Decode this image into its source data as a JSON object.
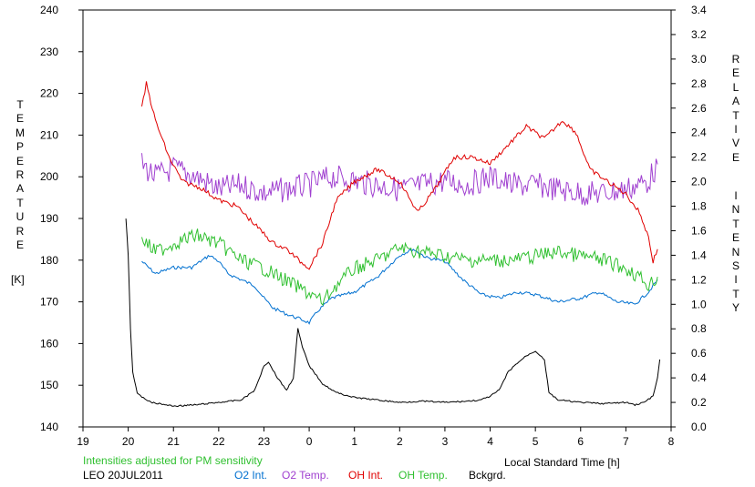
{
  "chart_data": {
    "type": "line",
    "left_axis": {
      "label_letters": [
        "T",
        "E",
        "M",
        "P",
        "E",
        "R",
        "A",
        "T",
        "U",
        "R",
        "E"
      ],
      "unit": "[K]",
      "ylim": [
        140,
        240
      ],
      "ticks": [
        "140",
        "150",
        "160",
        "170",
        "180",
        "190",
        "200",
        "210",
        "220",
        "230",
        "240"
      ]
    },
    "right_axis": {
      "label_words": [
        [
          "R",
          "E",
          "L",
          "A",
          "T",
          "I",
          "V",
          "E"
        ],
        [
          "I",
          "N",
          "T",
          "E",
          "N",
          "S",
          "I",
          "T",
          "Y"
        ]
      ],
      "ylim": [
        0.0,
        3.4
      ],
      "ticks": [
        "0.0",
        "0.2",
        "0.4",
        "0.6",
        "0.8",
        "1.0",
        "1.2",
        "1.4",
        "1.6",
        "1.8",
        "2.0",
        "2.2",
        "2.4",
        "2.6",
        "2.8",
        "3.0",
        "3.2",
        "3.4"
      ]
    },
    "x_axis": {
      "label": "Local Standard Time [h]",
      "ticks": [
        "19",
        "20",
        "21",
        "22",
        "23",
        "0",
        "1",
        "2",
        "3",
        "4",
        "5",
        "6",
        "7",
        "8"
      ],
      "xlim": [
        19,
        32
      ]
    },
    "note": "Intensities adjusted for PM sensitivity",
    "station": "LEO 20JUL2011",
    "series": [
      {
        "name": "O2 Int.",
        "color": "#0070d0",
        "axis": "right",
        "points": [
          [
            20.3,
            1.35
          ],
          [
            20.6,
            1.25
          ],
          [
            21.0,
            1.3
          ],
          [
            21.4,
            1.3
          ],
          [
            21.8,
            1.4
          ],
          [
            22.0,
            1.35
          ],
          [
            22.2,
            1.25
          ],
          [
            22.5,
            1.2
          ],
          [
            22.8,
            1.15
          ],
          [
            23.0,
            1.05
          ],
          [
            23.2,
            0.97
          ],
          [
            23.5,
            0.92
          ],
          [
            23.8,
            0.88
          ],
          [
            24.0,
            0.85
          ],
          [
            24.2,
            0.95
          ],
          [
            24.5,
            1.05
          ],
          [
            25.0,
            1.1
          ],
          [
            25.5,
            1.22
          ],
          [
            26.0,
            1.4
          ],
          [
            26.3,
            1.45
          ],
          [
            26.6,
            1.38
          ],
          [
            27.0,
            1.35
          ],
          [
            27.4,
            1.2
          ],
          [
            27.8,
            1.08
          ],
          [
            28.2,
            1.05
          ],
          [
            28.6,
            1.1
          ],
          [
            29.0,
            1.08
          ],
          [
            29.5,
            1.02
          ],
          [
            30.0,
            1.05
          ],
          [
            30.4,
            1.1
          ],
          [
            30.8,
            1.02
          ],
          [
            31.2,
            1.0
          ],
          [
            31.5,
            1.1
          ],
          [
            31.7,
            1.2
          ]
        ]
      },
      {
        "name": "O2 Temp.",
        "color": "#a040d0",
        "axis": "left",
        "points": [
          [
            20.3,
            203
          ],
          [
            20.6,
            200
          ],
          [
            21.0,
            202
          ],
          [
            21.5,
            200
          ],
          [
            22.0,
            197
          ],
          [
            22.5,
            198
          ],
          [
            23.0,
            196
          ],
          [
            23.5,
            197
          ],
          [
            24.0,
            198
          ],
          [
            24.5,
            200
          ],
          [
            25.0,
            199
          ],
          [
            25.5,
            198
          ],
          [
            26.0,
            197
          ],
          [
            26.5,
            198
          ],
          [
            27.0,
            199
          ],
          [
            27.5,
            198
          ],
          [
            28.0,
            200
          ],
          [
            28.5,
            198
          ],
          [
            29.0,
            198
          ],
          [
            29.5,
            197
          ],
          [
            30.0,
            196
          ],
          [
            30.5,
            196
          ],
          [
            31.0,
            197
          ],
          [
            31.5,
            199
          ],
          [
            31.7,
            203
          ]
        ]
      },
      {
        "name": "OH Int.",
        "color": "#e00000",
        "axis": "right",
        "points": [
          [
            20.3,
            2.6
          ],
          [
            20.4,
            2.8
          ],
          [
            20.6,
            2.5
          ],
          [
            20.9,
            2.2
          ],
          [
            21.2,
            2.0
          ],
          [
            21.6,
            1.95
          ],
          [
            22.0,
            1.85
          ],
          [
            22.4,
            1.8
          ],
          [
            22.8,
            1.65
          ],
          [
            23.2,
            1.5
          ],
          [
            23.5,
            1.45
          ],
          [
            23.8,
            1.35
          ],
          [
            24.0,
            1.3
          ],
          [
            24.3,
            1.5
          ],
          [
            24.6,
            1.85
          ],
          [
            25.0,
            2.0
          ],
          [
            25.5,
            2.1
          ],
          [
            26.0,
            2.0
          ],
          [
            26.4,
            1.75
          ],
          [
            26.8,
            1.95
          ],
          [
            27.2,
            2.2
          ],
          [
            27.6,
            2.2
          ],
          [
            28.0,
            2.15
          ],
          [
            28.4,
            2.3
          ],
          [
            28.8,
            2.45
          ],
          [
            29.2,
            2.35
          ],
          [
            29.6,
            2.5
          ],
          [
            29.9,
            2.4
          ],
          [
            30.2,
            2.1
          ],
          [
            30.6,
            2.0
          ],
          [
            31.0,
            1.9
          ],
          [
            31.3,
            1.75
          ],
          [
            31.5,
            1.55
          ],
          [
            31.6,
            1.35
          ],
          [
            31.7,
            1.45
          ]
        ]
      },
      {
        "name": "OH Temp.",
        "color": "#30c030",
        "axis": "left",
        "points": [
          [
            20.3,
            185
          ],
          [
            20.6,
            182
          ],
          [
            21.0,
            184
          ],
          [
            21.5,
            186
          ],
          [
            22.0,
            184
          ],
          [
            22.5,
            180
          ],
          [
            23.0,
            178
          ],
          [
            23.5,
            175
          ],
          [
            24.0,
            172
          ],
          [
            24.3,
            170
          ],
          [
            24.6,
            174
          ],
          [
            25.0,
            178
          ],
          [
            25.5,
            180
          ],
          [
            26.0,
            183
          ],
          [
            26.5,
            182
          ],
          [
            27.0,
            181
          ],
          [
            27.5,
            180
          ],
          [
            28.0,
            180
          ],
          [
            28.5,
            180
          ],
          [
            29.0,
            181
          ],
          [
            29.5,
            182
          ],
          [
            30.0,
            181
          ],
          [
            30.5,
            180
          ],
          [
            31.0,
            178
          ],
          [
            31.3,
            176
          ],
          [
            31.5,
            174
          ],
          [
            31.7,
            176
          ]
        ]
      },
      {
        "name": "Bckgrd.",
        "color": "#000000",
        "axis": "right",
        "points": [
          [
            19.95,
            1.7
          ],
          [
            20.0,
            1.4
          ],
          [
            20.05,
            0.8
          ],
          [
            20.1,
            0.45
          ],
          [
            20.2,
            0.27
          ],
          [
            20.5,
            0.2
          ],
          [
            21.0,
            0.17
          ],
          [
            21.5,
            0.18
          ],
          [
            22.0,
            0.2
          ],
          [
            22.5,
            0.22
          ],
          [
            22.8,
            0.3
          ],
          [
            23.0,
            0.5
          ],
          [
            23.1,
            0.53
          ],
          [
            23.3,
            0.4
          ],
          [
            23.5,
            0.3
          ],
          [
            23.65,
            0.4
          ],
          [
            23.75,
            0.8
          ],
          [
            23.85,
            0.65
          ],
          [
            24.0,
            0.5
          ],
          [
            24.3,
            0.35
          ],
          [
            24.6,
            0.28
          ],
          [
            25.0,
            0.24
          ],
          [
            25.5,
            0.22
          ],
          [
            26.0,
            0.2
          ],
          [
            26.5,
            0.21
          ],
          [
            27.0,
            0.2
          ],
          [
            27.5,
            0.21
          ],
          [
            27.8,
            0.22
          ],
          [
            28.0,
            0.25
          ],
          [
            28.2,
            0.3
          ],
          [
            28.4,
            0.45
          ],
          [
            28.6,
            0.52
          ],
          [
            28.8,
            0.58
          ],
          [
            29.0,
            0.62
          ],
          [
            29.2,
            0.55
          ],
          [
            29.3,
            0.28
          ],
          [
            29.5,
            0.22
          ],
          [
            30.0,
            0.2
          ],
          [
            30.5,
            0.19
          ],
          [
            31.0,
            0.2
          ],
          [
            31.2,
            0.18
          ],
          [
            31.4,
            0.2
          ],
          [
            31.6,
            0.25
          ],
          [
            31.7,
            0.4
          ],
          [
            31.75,
            0.55
          ]
        ]
      }
    ]
  }
}
